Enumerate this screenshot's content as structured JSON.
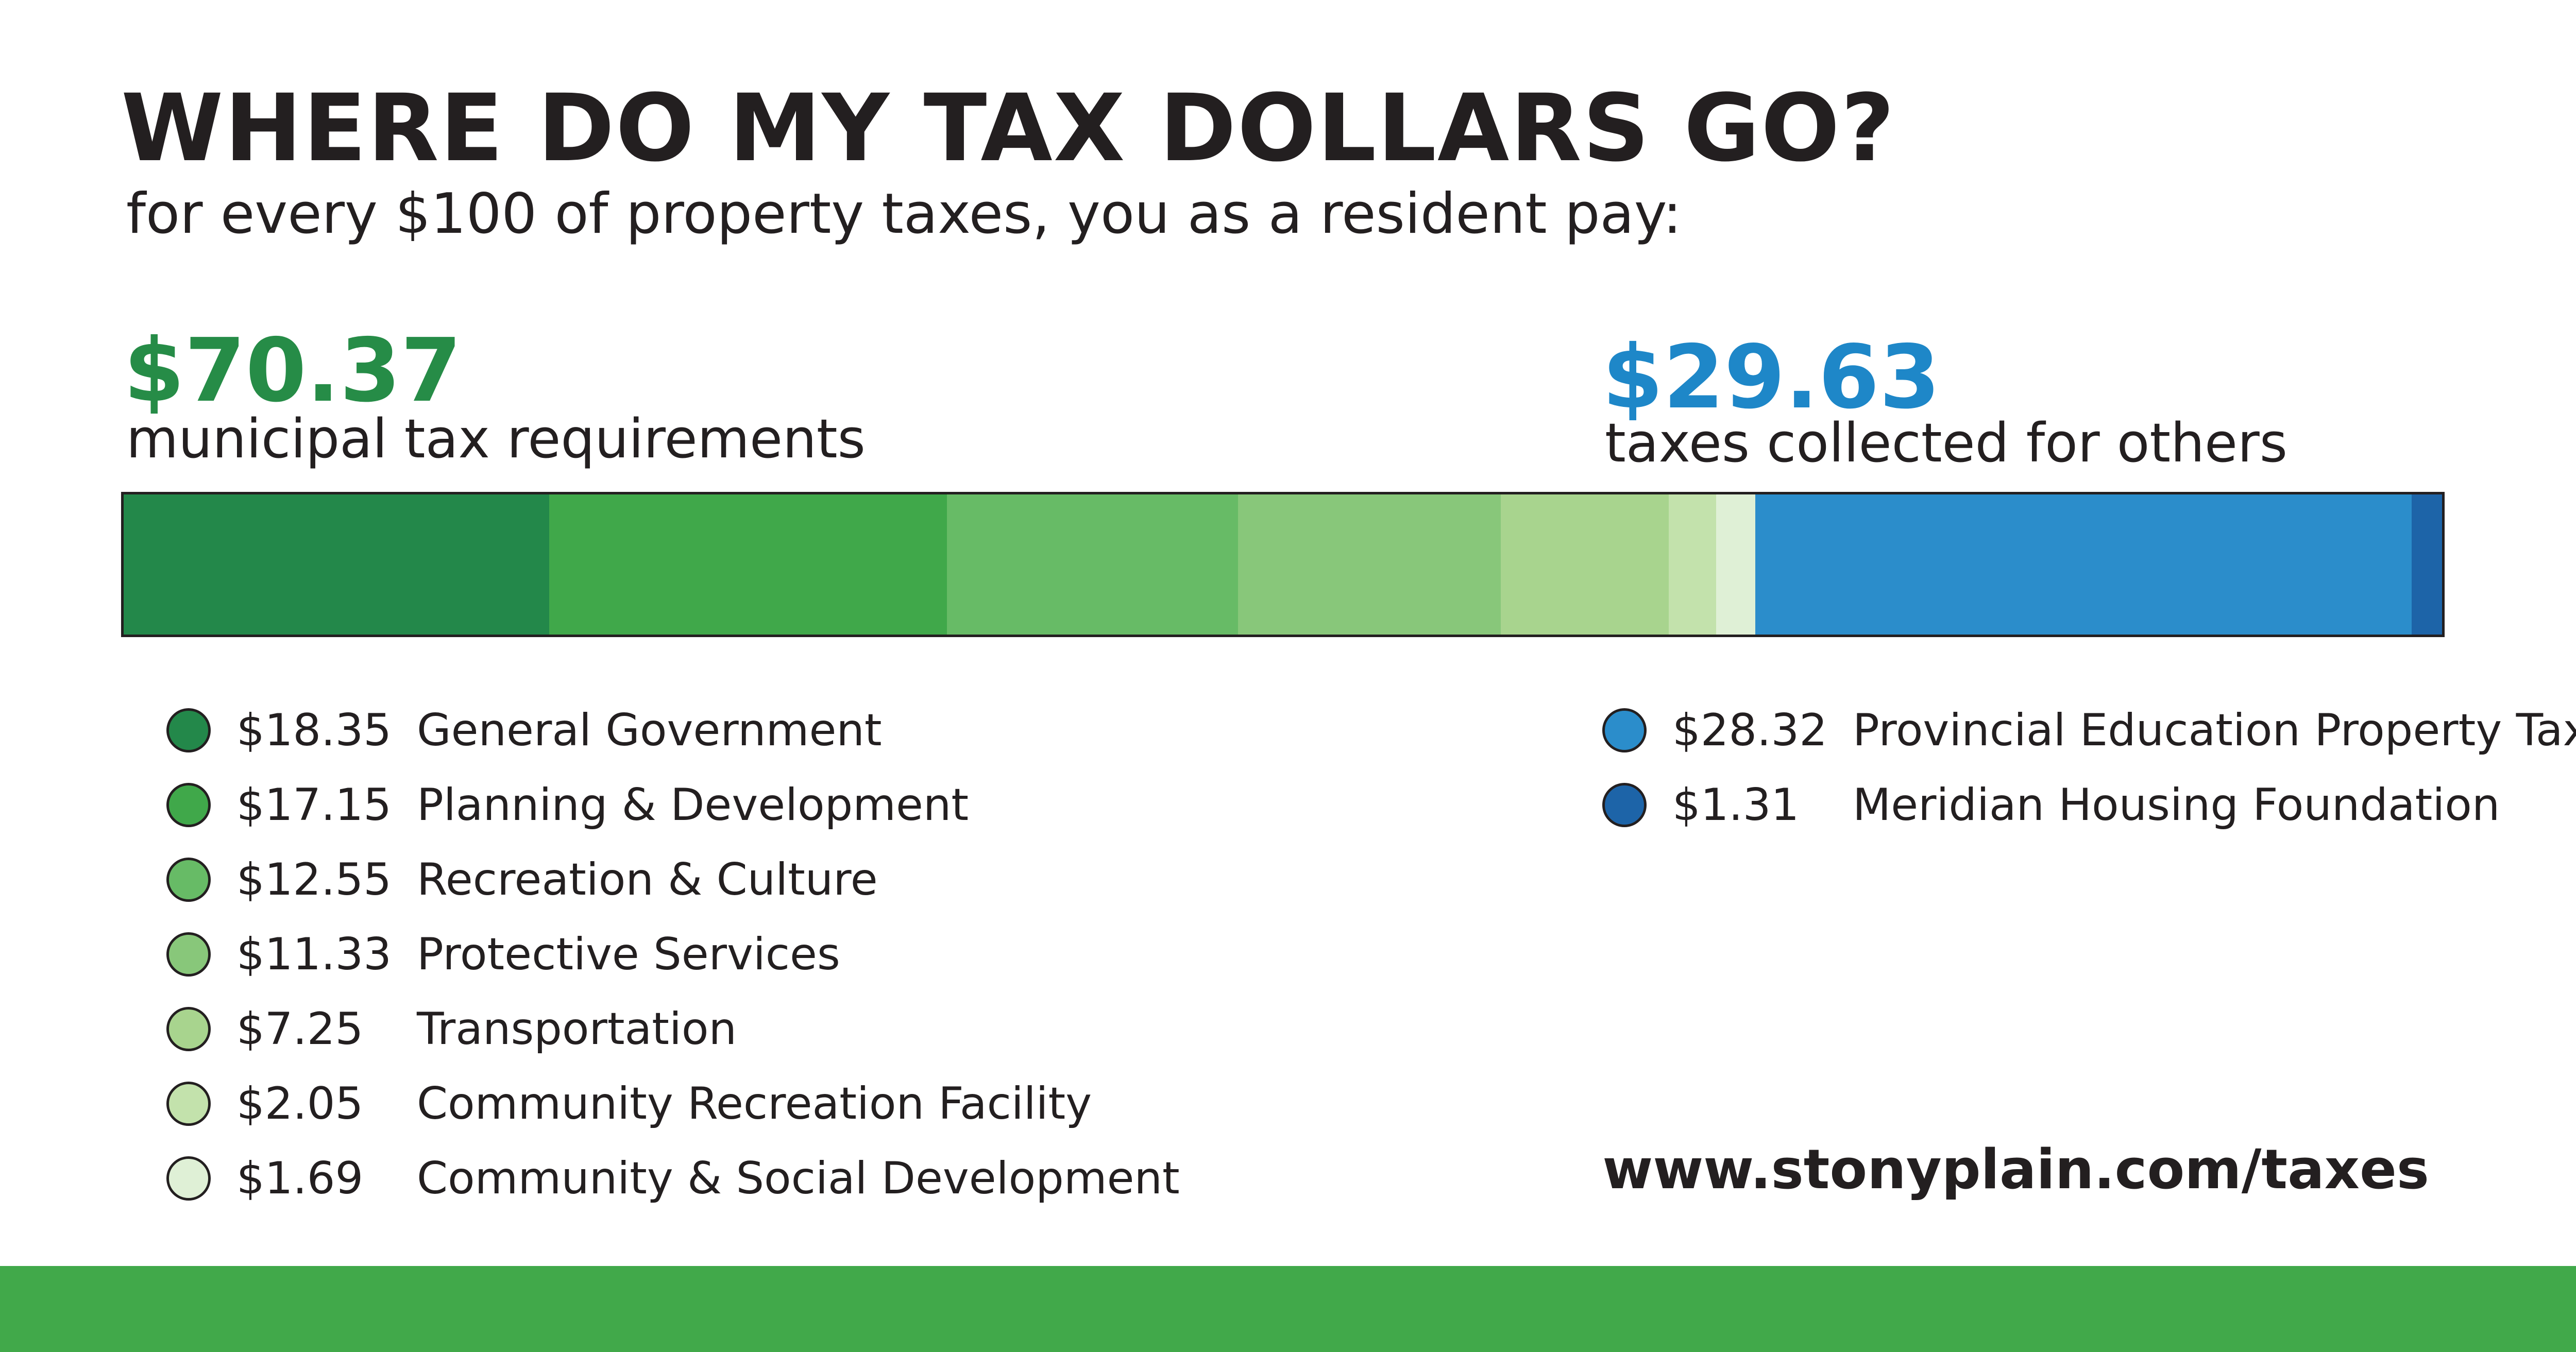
{
  "header": {
    "title": "WHERE DO MY TAX DOLLARS GO?",
    "subtitle": "for every $100 of property taxes, you as a resident pay:"
  },
  "groups": {
    "municipal": {
      "amount": "$70.37",
      "label": "municipal tax requirements",
      "color": "#268c47"
    },
    "others": {
      "amount": "$29.63",
      "label": "taxes collected for others",
      "color": "#1e87c8"
    }
  },
  "chart_data": {
    "type": "bar",
    "stacked": true,
    "orientation": "horizontal",
    "total": 100,
    "series": [
      {
        "name": "General Government",
        "value": 18.35,
        "label": "$18.35",
        "group": "municipal",
        "color": "#23884a"
      },
      {
        "name": "Planning & Development",
        "value": 17.15,
        "label": "$17.15",
        "group": "municipal",
        "color": "#40a84a"
      },
      {
        "name": "Recreation & Culture",
        "value": 12.55,
        "label": "$12.55",
        "group": "municipal",
        "color": "#67bb66"
      },
      {
        "name": "Protective Services",
        "value": 11.33,
        "label": "$11.33",
        "group": "municipal",
        "color": "#88c77a"
      },
      {
        "name": "Transportation",
        "value": 7.25,
        "label": "$7.25",
        "group": "municipal",
        "color": "#a8d48e"
      },
      {
        "name": "Community Recreation Facility",
        "value": 2.05,
        "label": "$2.05",
        "group": "municipal",
        "color": "#c3e2ac"
      },
      {
        "name": "Community & Social Development",
        "value": 1.69,
        "label": "$1.69",
        "group": "municipal",
        "color": "#dff0d6"
      },
      {
        "name": "Provincial Education Property Tax",
        "value": 28.32,
        "label": "$28.32",
        "group": "others",
        "color": "#2b8dcb"
      },
      {
        "name": "Meridian Housing Foundation",
        "value": 1.31,
        "label": "$1.31",
        "group": "others",
        "color": "#1d64a8"
      }
    ]
  },
  "footer": {
    "url": "www.stonyplain.com/taxes",
    "band_color": "#41a94a"
  }
}
